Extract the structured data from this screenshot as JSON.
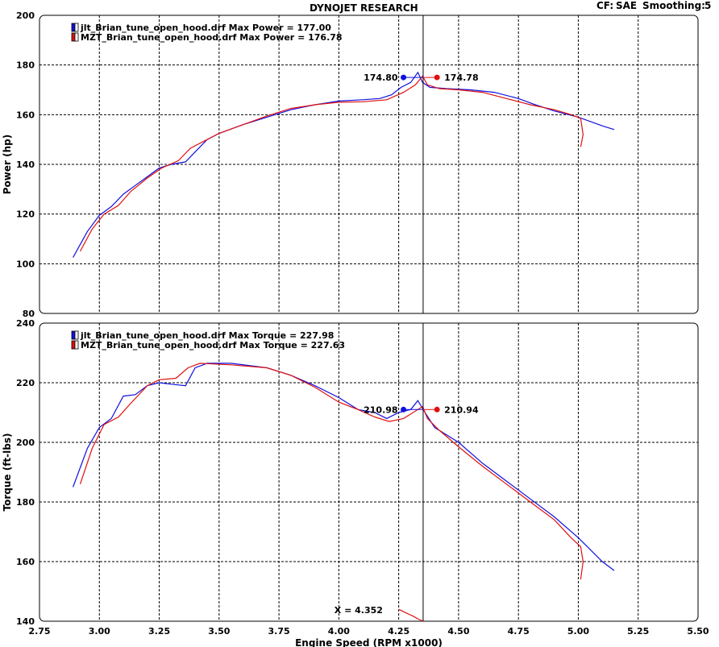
{
  "header": {
    "title": "DYNOJET RESEARCH",
    "cf_label": "CF:",
    "cf_value": "SAE",
    "smoothing_label": "Smoothing:",
    "smoothing_value": "5"
  },
  "colors": {
    "series1": "#1010e0",
    "series2": "#e01010",
    "cursor": "#000000",
    "grid": "#000000"
  },
  "chart_data": [
    {
      "type": "line",
      "ylabel": "Power (hp)",
      "xlabel": "",
      "xlim": [
        2.75,
        5.5
      ],
      "ylim": [
        80,
        200
      ],
      "xticks": [
        2.75,
        3.0,
        3.25,
        3.5,
        3.75,
        4.0,
        4.25,
        4.5,
        4.75,
        5.0,
        5.25,
        5.5
      ],
      "yticks": [
        80,
        100,
        120,
        140,
        160,
        180,
        200
      ],
      "grid": true,
      "legend_position": "top-left",
      "legend": [
        {
          "text": "jlt_Brian_tune_open_hood.drf Max Power = 177.00",
          "color": "#1010e0"
        },
        {
          "text": "MZT_Brian_tune_open_hood.drf Max Power = 176.78",
          "color": "#e01010"
        }
      ],
      "series": [
        {
          "name": "jlt_Brian_tune_open_hood.drf",
          "color": "#1010e0",
          "points": [
            [
              2.89,
              102.5
            ],
            [
              2.95,
              113
            ],
            [
              3.0,
              119.5
            ],
            [
              3.05,
              123
            ],
            [
              3.1,
              128
            ],
            [
              3.15,
              131.5
            ],
            [
              3.2,
              135
            ],
            [
              3.25,
              138.5
            ],
            [
              3.3,
              140
            ],
            [
              3.36,
              141
            ],
            [
              3.4,
              145
            ],
            [
              3.45,
              150
            ],
            [
              3.5,
              152.5
            ],
            [
              3.6,
              156
            ],
            [
              3.7,
              159
            ],
            [
              3.8,
              162
            ],
            [
              3.9,
              164
            ],
            [
              4.0,
              165.5
            ],
            [
              4.1,
              166
            ],
            [
              4.17,
              166.5
            ],
            [
              4.22,
              168
            ],
            [
              4.26,
              171
            ],
            [
              4.3,
              173
            ],
            [
              4.33,
              177
            ],
            [
              4.35,
              173
            ],
            [
              4.38,
              171
            ],
            [
              4.45,
              170.5
            ],
            [
              4.55,
              170
            ],
            [
              4.65,
              169
            ],
            [
              4.75,
              166.5
            ],
            [
              4.82,
              164
            ],
            [
              4.9,
              161.5
            ],
            [
              5.0,
              159
            ],
            [
              5.1,
              155.5
            ],
            [
              5.15,
              154
            ]
          ]
        },
        {
          "name": "MZT_Brian_tune_open_hood.drf",
          "color": "#e01010",
          "points": [
            [
              2.92,
              105
            ],
            [
              2.97,
              114
            ],
            [
              3.02,
              120
            ],
            [
              3.08,
              123.5
            ],
            [
              3.13,
              129
            ],
            [
              3.2,
              134.5
            ],
            [
              3.26,
              138.5
            ],
            [
              3.33,
              141.5
            ],
            [
              3.38,
              146.5
            ],
            [
              3.45,
              150
            ],
            [
              3.5,
              152.5
            ],
            [
              3.6,
              156
            ],
            [
              3.7,
              159.5
            ],
            [
              3.8,
              162.5
            ],
            [
              3.9,
              164
            ],
            [
              4.0,
              165
            ],
            [
              4.1,
              165.2
            ],
            [
              4.2,
              166
            ],
            [
              4.27,
              169
            ],
            [
              4.32,
              172
            ],
            [
              4.35,
              175.5
            ],
            [
              4.37,
              172
            ],
            [
              4.42,
              170.5
            ],
            [
              4.5,
              170
            ],
            [
              4.6,
              169
            ],
            [
              4.7,
              166.5
            ],
            [
              4.8,
              164
            ],
            [
              4.9,
              162
            ],
            [
              4.97,
              160
            ],
            [
              5.01,
              158.5
            ],
            [
              5.02,
              152
            ],
            [
              5.01,
              147
            ]
          ]
        }
      ],
      "annotations": [
        {
          "label": "174.80",
          "x": 4.27,
          "y": 175,
          "color": "#1010e0",
          "side": "left"
        },
        {
          "label": "174.78",
          "x": 4.41,
          "y": 175,
          "color": "#e01010",
          "side": "right"
        }
      ],
      "cursor_x": 4.352
    },
    {
      "type": "line",
      "ylabel": "Torque (ft-lbs)",
      "xlabel": "Engine Speed (RPM x1000)",
      "xlim": [
        2.75,
        5.5
      ],
      "ylim": [
        140,
        240
      ],
      "xticks": [
        2.75,
        3.0,
        3.25,
        3.5,
        3.75,
        4.0,
        4.25,
        4.5,
        4.75,
        5.0,
        5.25,
        5.5
      ],
      "xticklabels": [
        "2.75",
        "3.00",
        "3.25",
        "3.50",
        "3.75",
        "4.00",
        "4.25",
        "4.50",
        "4.75",
        "5.00",
        "5.25",
        "5.50"
      ],
      "yticks": [
        140,
        160,
        180,
        200,
        220,
        240
      ],
      "grid": true,
      "legend_position": "top-left",
      "legend": [
        {
          "text": "jlt_Brian_tune_open_hood.drf Max Torque = 227.98",
          "color": "#1010e0"
        },
        {
          "text": "MZT_Brian_tune_open_hood.drf Max Torque = 227.63",
          "color": "#e01010"
        }
      ],
      "series": [
        {
          "name": "jlt_Brian_tune_open_hood.drf",
          "color": "#1010e0",
          "points": [
            [
              2.89,
              185
            ],
            [
              2.95,
              198
            ],
            [
              3.0,
              205
            ],
            [
              3.05,
              208
            ],
            [
              3.1,
              215.5
            ],
            [
              3.15,
              216
            ],
            [
              3.2,
              219
            ],
            [
              3.25,
              220
            ],
            [
              3.3,
              219.5
            ],
            [
              3.36,
              219
            ],
            [
              3.4,
              225
            ],
            [
              3.45,
              226.5
            ],
            [
              3.55,
              226.5
            ],
            [
              3.7,
              225
            ],
            [
              3.8,
              222.5
            ],
            [
              3.9,
              219
            ],
            [
              4.0,
              215
            ],
            [
              4.08,
              211
            ],
            [
              4.15,
              210
            ],
            [
              4.2,
              208
            ],
            [
              4.25,
              210
            ],
            [
              4.3,
              211
            ],
            [
              4.33,
              214
            ],
            [
              4.36,
              210
            ],
            [
              4.4,
              205
            ],
            [
              4.5,
              200
            ],
            [
              4.6,
              193
            ],
            [
              4.7,
              187
            ],
            [
              4.8,
              181
            ],
            [
              4.9,
              175
            ],
            [
              5.0,
              168
            ],
            [
              5.05,
              164
            ],
            [
              5.1,
              160
            ],
            [
              5.15,
              157
            ]
          ]
        },
        {
          "name": "MZT_Brian_tune_open_hood.drf",
          "color": "#e01010",
          "points": [
            [
              2.92,
              186
            ],
            [
              2.97,
              198
            ],
            [
              3.02,
              206
            ],
            [
              3.08,
              208.5
            ],
            [
              3.13,
              213
            ],
            [
              3.2,
              219
            ],
            [
              3.25,
              221
            ],
            [
              3.32,
              221.5
            ],
            [
              3.37,
              225
            ],
            [
              3.42,
              226.5
            ],
            [
              3.55,
              226
            ],
            [
              3.7,
              225
            ],
            [
              3.8,
              222.5
            ],
            [
              3.9,
              218.5
            ],
            [
              4.0,
              213.5
            ],
            [
              4.08,
              211
            ],
            [
              4.15,
              208.5
            ],
            [
              4.21,
              207
            ],
            [
              4.27,
              208
            ],
            [
              4.33,
              211
            ],
            [
              4.35,
              212
            ],
            [
              4.37,
              208
            ],
            [
              4.42,
              204
            ],
            [
              4.5,
              198.5
            ],
            [
              4.6,
              192
            ],
            [
              4.7,
              186
            ],
            [
              4.8,
              180
            ],
            [
              4.9,
              174
            ],
            [
              4.97,
              168
            ],
            [
              5.01,
              165
            ],
            [
              5.02,
              160
            ],
            [
              5.01,
              154
            ]
          ]
        },
        {
          "name": "",
          "color": "#e01010",
          "points": [
            [
              4.25,
              144
            ],
            [
              4.28,
              142.8
            ],
            [
              4.31,
              141.7
            ],
            [
              4.33,
              140.8
            ],
            [
              4.352,
              140
            ]
          ]
        }
      ],
      "annotations": [
        {
          "label": "210.98",
          "x": 4.27,
          "y": 211,
          "color": "#1010e0",
          "side": "left"
        },
        {
          "label": "210.94",
          "x": 4.41,
          "y": 211,
          "color": "#e01010",
          "side": "right"
        }
      ],
      "cursor_x": 4.352,
      "cursor_label": "X = 4.352"
    }
  ]
}
